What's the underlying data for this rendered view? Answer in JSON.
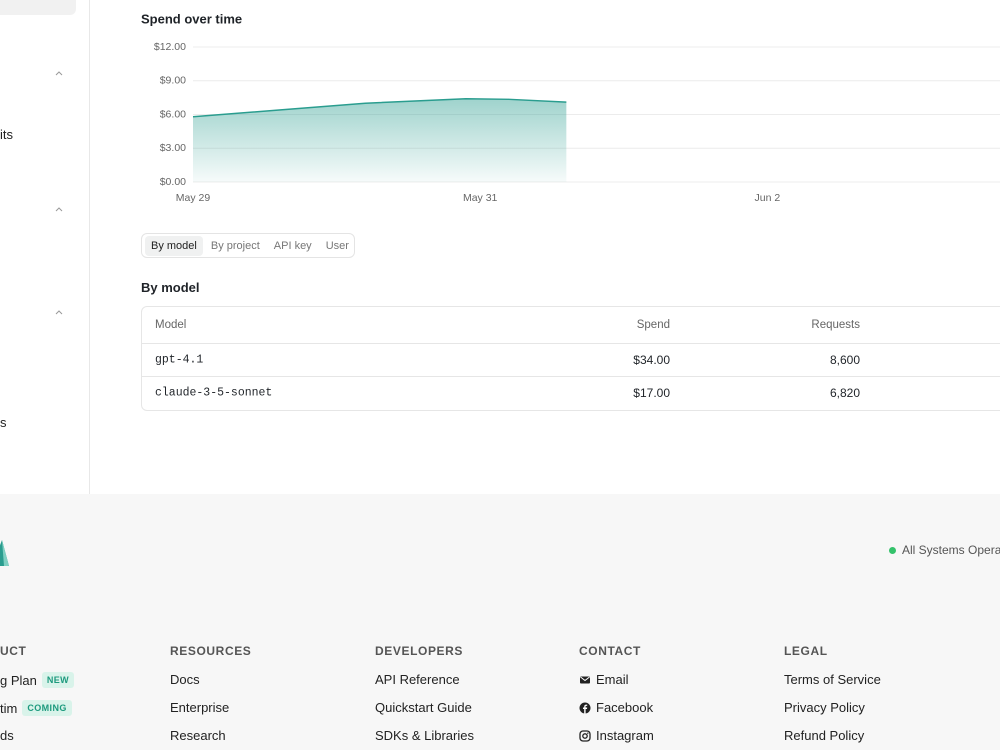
{
  "sidebar": {
    "items": [
      "its",
      "s"
    ]
  },
  "chart_data": {
    "type": "area",
    "title": "Spend over time",
    "x": [
      0,
      0.6,
      1.2,
      1.9,
      2.2,
      2.6
    ],
    "values": [
      5.8,
      6.4,
      7.0,
      7.4,
      7.35,
      7.1
    ],
    "color": "#2a9d8f",
    "xlim": [
      0,
      5.62
    ],
    "xticks": [
      {
        "value": 0,
        "label": "May 29"
      },
      {
        "value": 2,
        "label": "May 31"
      },
      {
        "value": 4,
        "label": "Jun 2"
      }
    ],
    "ylim": [
      0,
      12
    ],
    "yticks": [
      {
        "value": 0,
        "label": "$0.00"
      },
      {
        "value": 3,
        "label": "$3.00"
      },
      {
        "value": 6,
        "label": "$6.00"
      },
      {
        "value": 9,
        "label": "$9.00"
      },
      {
        "value": 12,
        "label": "$12.00"
      }
    ],
    "grid": true
  },
  "tabs": [
    "By model",
    "By project",
    "API key",
    "User"
  ],
  "table": {
    "title": "By model",
    "columns": [
      "Model",
      "Spend",
      "Requests"
    ],
    "rows": [
      [
        "gpt-4.1",
        "$34.00",
        "8,600"
      ],
      [
        "claude-3-5-sonnet",
        "$17.00",
        "6,820"
      ]
    ]
  },
  "footer": {
    "status": "All Systems Opera",
    "columns": [
      {
        "heading": "UCT",
        "links": [
          {
            "text": "g Plan",
            "badge": "NEW"
          },
          {
            "text": "tim",
            "badge": "COMING"
          },
          {
            "text": "ds"
          }
        ]
      },
      {
        "heading": "RESOURCES",
        "links": [
          {
            "text": "Docs"
          },
          {
            "text": "Enterprise"
          },
          {
            "text": "Research"
          }
        ]
      },
      {
        "heading": "DEVELOPERS",
        "links": [
          {
            "text": "API Reference"
          },
          {
            "text": "Quickstart Guide"
          },
          {
            "text": "SDKs & Libraries"
          }
        ]
      },
      {
        "heading": "CONTACT",
        "links": [
          {
            "text": "Email"
          },
          {
            "text": "Facebook"
          },
          {
            "text": "Instagram"
          }
        ]
      },
      {
        "heading": "LEGAL",
        "links": [
          {
            "text": "Terms of Service"
          },
          {
            "text": "Privacy Policy"
          },
          {
            "text": "Refund Policy"
          }
        ]
      }
    ]
  }
}
